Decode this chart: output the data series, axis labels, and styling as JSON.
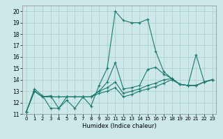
{
  "xlabel": "Humidex (Indice chaleur)",
  "xlim": [
    -0.5,
    23.5
  ],
  "ylim": [
    11,
    20.5
  ],
  "xticks": [
    0,
    1,
    2,
    3,
    4,
    5,
    6,
    7,
    8,
    9,
    10,
    11,
    12,
    13,
    14,
    15,
    16,
    17,
    18,
    19,
    20,
    21,
    22,
    23
  ],
  "yticks": [
    11,
    12,
    13,
    14,
    15,
    16,
    17,
    18,
    19,
    20
  ],
  "bg_color": "#cce8e8",
  "grid_color": "#aacccc",
  "line_color": "#1a7a6e",
  "lines": [
    {
      "x": [
        0,
        1,
        2,
        3,
        4,
        5,
        6,
        7,
        8,
        9,
        10,
        11,
        12,
        13,
        14,
        15,
        16,
        17,
        18,
        19,
        20,
        21,
        22,
        23
      ],
      "y": [
        11.2,
        13.2,
        12.6,
        11.5,
        11.5,
        12.2,
        11.5,
        12.5,
        11.7,
        13.5,
        15.0,
        20.0,
        19.2,
        19.0,
        19.0,
        19.3,
        16.5,
        14.7,
        14.1,
        13.6,
        13.5,
        16.2,
        13.8,
        14.0
      ]
    },
    {
      "x": [
        0,
        1,
        2,
        3,
        4,
        5,
        6,
        7,
        8,
        9,
        10,
        11,
        12,
        13,
        14,
        15,
        16,
        17,
        18,
        19,
        20,
        21,
        22,
        23
      ],
      "y": [
        11.2,
        13.0,
        12.5,
        12.6,
        11.5,
        12.5,
        12.5,
        12.5,
        12.5,
        13.0,
        13.8,
        15.5,
        13.2,
        13.3,
        13.5,
        14.9,
        15.1,
        14.5,
        14.1,
        13.6,
        13.5,
        13.5,
        13.8,
        14.0
      ]
    },
    {
      "x": [
        0,
        1,
        2,
        3,
        4,
        5,
        6,
        7,
        8,
        9,
        10,
        11,
        12,
        13,
        14,
        15,
        16,
        17,
        18,
        19,
        20,
        21,
        22,
        23
      ],
      "y": [
        11.2,
        13.0,
        12.5,
        12.5,
        12.5,
        12.5,
        12.5,
        12.5,
        12.5,
        13.0,
        13.3,
        13.8,
        12.8,
        13.0,
        13.2,
        13.5,
        13.7,
        14.0,
        14.1,
        13.6,
        13.5,
        13.5,
        13.8,
        14.0
      ]
    },
    {
      "x": [
        0,
        1,
        2,
        3,
        4,
        5,
        6,
        7,
        8,
        9,
        10,
        11,
        12,
        13,
        14,
        15,
        16,
        17,
        18,
        19,
        20,
        21,
        22,
        23
      ],
      "y": [
        11.2,
        13.0,
        12.5,
        12.5,
        12.5,
        12.5,
        12.5,
        12.5,
        12.5,
        12.8,
        13.0,
        13.3,
        12.5,
        12.7,
        13.0,
        13.2,
        13.4,
        13.7,
        14.0,
        13.6,
        13.5,
        13.5,
        13.8,
        14.0
      ]
    }
  ]
}
